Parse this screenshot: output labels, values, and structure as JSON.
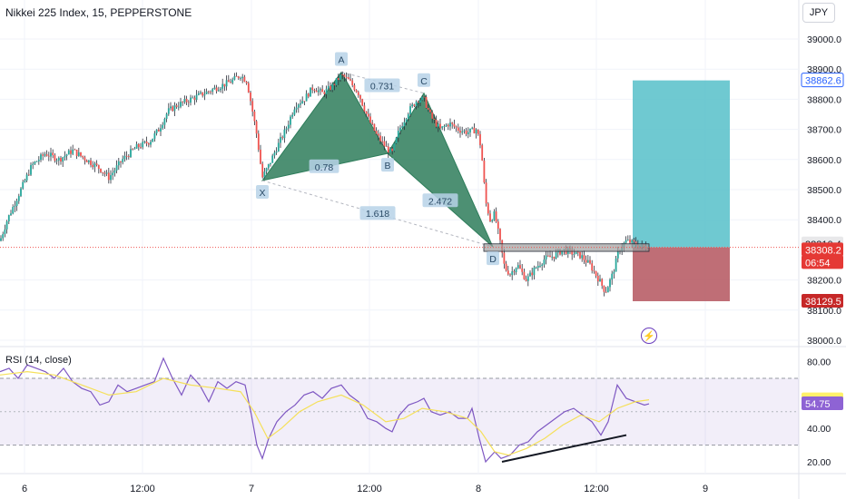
{
  "header": {
    "title": "Nikkei 225 Index, 15, PEPPERSTONE",
    "currency_button": "JPY"
  },
  "chart_data": [
    {
      "type": "candlestick",
      "title": "Nikkei 225 Index, 15, PEPPERSTONE",
      "ylim": [
        38000,
        39100
      ],
      "y_ticks": [
        "39000.0",
        "38900.0",
        "38800.0",
        "38700.0",
        "38600.0",
        "38500.0",
        "38400.0",
        "38200.0",
        "38100.0",
        "38000.0"
      ],
      "x_ticks": [
        "6",
        "12:00",
        "7",
        "12:00",
        "8",
        "12:00",
        "9"
      ],
      "grid": true,
      "close_path": [
        [
          0,
          38330
        ],
        [
          8,
          38400
        ],
        [
          20,
          38480
        ],
        [
          35,
          38580
        ],
        [
          50,
          38620
        ],
        [
          65,
          38600
        ],
        [
          80,
          38630
        ],
        [
          95,
          38600
        ],
        [
          110,
          38570
        ],
        [
          120,
          38540
        ],
        [
          135,
          38600
        ],
        [
          150,
          38640
        ],
        [
          165,
          38660
        ],
        [
          175,
          38700
        ],
        [
          185,
          38760
        ],
        [
          195,
          38780
        ],
        [
          210,
          38800
        ],
        [
          225,
          38820
        ],
        [
          240,
          38840
        ],
        [
          255,
          38860
        ],
        [
          265,
          38880
        ],
        [
          272,
          38860
        ],
        [
          277,
          38780
        ],
        [
          283,
          38680
        ],
        [
          289,
          38540
        ],
        [
          296,
          38580
        ],
        [
          305,
          38640
        ],
        [
          315,
          38700
        ],
        [
          325,
          38780
        ],
        [
          335,
          38800
        ],
        [
          345,
          38840
        ],
        [
          355,
          38820
        ],
        [
          365,
          38840
        ],
        [
          376,
          38880
        ],
        [
          385,
          38860
        ],
        [
          395,
          38820
        ],
        [
          405,
          38740
        ],
        [
          415,
          38680
        ],
        [
          425,
          38640
        ],
        [
          432,
          38620
        ],
        [
          440,
          38700
        ],
        [
          450,
          38760
        ],
        [
          460,
          38800
        ],
        [
          467,
          38800
        ],
        [
          475,
          38740
        ],
        [
          485,
          38700
        ],
        [
          495,
          38720
        ],
        [
          505,
          38700
        ],
        [
          515,
          38690
        ],
        [
          525,
          38700
        ],
        [
          530,
          38640
        ],
        [
          535,
          38460
        ],
        [
          540,
          38400
        ],
        [
          545,
          38420
        ],
        [
          550,
          38340
        ],
        [
          556,
          38240
        ],
        [
          562,
          38220
        ],
        [
          570,
          38250
        ],
        [
          580,
          38200
        ],
        [
          590,
          38240
        ],
        [
          600,
          38270
        ],
        [
          610,
          38280
        ],
        [
          620,
          38300
        ],
        [
          630,
          38290
        ],
        [
          640,
          38280
        ],
        [
          650,
          38250
        ],
        [
          660,
          38200
        ],
        [
          667,
          38160
        ],
        [
          675,
          38220
        ],
        [
          682,
          38300
        ],
        [
          690,
          38330
        ],
        [
          700,
          38320
        ],
        [
          710,
          38310
        ],
        [
          715,
          38308
        ]
      ],
      "harmonic_pattern": {
        "points": [
          {
            "label": "X",
            "x": 289,
            "y": 38530
          },
          {
            "label": "A",
            "x": 376,
            "y": 38890
          },
          {
            "label": "B",
            "x": 427,
            "y": 38620
          },
          {
            "label": "C",
            "x": 467,
            "y": 38820
          },
          {
            "label": "D",
            "x": 543,
            "y": 38310
          }
        ],
        "ratios": [
          {
            "text": "0.731",
            "x": 421,
            "y": 38845
          },
          {
            "text": "0.78",
            "x": 357,
            "y": 38576
          },
          {
            "text": "2.472",
            "x": 485,
            "y": 38463
          },
          {
            "text": "1.618",
            "x": 416,
            "y": 38421
          }
        ]
      },
      "position": {
        "entry": 38308.2,
        "target": 38862.6,
        "stop": 38129.5,
        "x_start": 697,
        "x_end": 804,
        "profit_color": "#5fc3cc",
        "loss_color": "#b85e67"
      },
      "support_zone": {
        "low": 38295,
        "high": 38320,
        "x_start": 533,
        "x_end": 715
      },
      "price_labels": [
        {
          "text": "38862.6",
          "price": 38862.6,
          "style": "outline-blue"
        },
        {
          "text": "38310.4",
          "price": 38320,
          "style": "light"
        },
        {
          "text": "38308.2",
          "price": 38300,
          "style": "red"
        },
        {
          "text": "06:54",
          "price": 38258,
          "style": "red"
        },
        {
          "text": "38129.5",
          "price": 38129.5,
          "style": "dark-red"
        }
      ],
      "current_price": 38308.2,
      "colors": {
        "up": "#26a69a",
        "down": "#ef5350",
        "candle": "#2a2e39",
        "pattern_fill": "#2e7d5b"
      }
    },
    {
      "type": "line",
      "title": "RSI (14, close)",
      "ylim": [
        14,
        88
      ],
      "y_ticks": [
        "80.00",
        "40.00",
        "20.00"
      ],
      "bands": {
        "upper": 70,
        "lower": 30
      },
      "series": [
        {
          "name": "RSI",
          "color": "#7e57c2",
          "values": [
            [
              0,
              74
            ],
            [
              10,
              76
            ],
            [
              20,
              70
            ],
            [
              30,
              78
            ],
            [
              40,
              76
            ],
            [
              50,
              74
            ],
            [
              60,
              70
            ],
            [
              70,
              76
            ],
            [
              80,
              68
            ],
            [
              90,
              64
            ],
            [
              100,
              62
            ],
            [
              110,
              54
            ],
            [
              120,
              56
            ],
            [
              130,
              66
            ],
            [
              140,
              62
            ],
            [
              150,
              64
            ],
            [
              160,
              66
            ],
            [
              170,
              68
            ],
            [
              180,
              82
            ],
            [
              190,
              70
            ],
            [
              200,
              60
            ],
            [
              210,
              72
            ],
            [
              220,
              66
            ],
            [
              230,
              56
            ],
            [
              240,
              68
            ],
            [
              250,
              64
            ],
            [
              260,
              68
            ],
            [
              270,
              66
            ],
            [
              277,
              48
            ],
            [
              283,
              30
            ],
            [
              289,
              22
            ],
            [
              296,
              34
            ],
            [
              305,
              44
            ],
            [
              315,
              50
            ],
            [
              325,
              54
            ],
            [
              335,
              60
            ],
            [
              345,
              62
            ],
            [
              355,
              58
            ],
            [
              365,
              64
            ],
            [
              376,
              66
            ],
            [
              385,
              60
            ],
            [
              395,
              56
            ],
            [
              405,
              46
            ],
            [
              415,
              44
            ],
            [
              425,
              40
            ],
            [
              432,
              38
            ],
            [
              440,
              48
            ],
            [
              450,
              54
            ],
            [
              460,
              56
            ],
            [
              467,
              58
            ],
            [
              475,
              50
            ],
            [
              485,
              48
            ],
            [
              495,
              50
            ],
            [
              505,
              46
            ],
            [
              515,
              46
            ],
            [
              520,
              52
            ],
            [
              528,
              34
            ],
            [
              535,
              20
            ],
            [
              545,
              26
            ],
            [
              552,
              22
            ],
            [
              562,
              24
            ],
            [
              572,
              30
            ],
            [
              582,
              32
            ],
            [
              592,
              38
            ],
            [
              602,
              42
            ],
            [
              612,
              46
            ],
            [
              622,
              50
            ],
            [
              632,
              52
            ],
            [
              642,
              48
            ],
            [
              652,
              44
            ],
            [
              662,
              36
            ],
            [
              670,
              44
            ],
            [
              680,
              66
            ],
            [
              690,
              58
            ],
            [
              700,
              56
            ],
            [
              710,
              54
            ],
            [
              715,
              54.75
            ]
          ]
        },
        {
          "name": "MA",
          "color": "#f5e05a",
          "values": [
            [
              0,
              72
            ],
            [
              30,
              74
            ],
            [
              60,
              72
            ],
            [
              90,
              66
            ],
            [
              120,
              60
            ],
            [
              150,
              62
            ],
            [
              180,
              70
            ],
            [
              210,
              66
            ],
            [
              240,
              64
            ],
            [
              265,
              62
            ],
            [
              280,
              50
            ],
            [
              295,
              34
            ],
            [
              310,
              40
            ],
            [
              330,
              50
            ],
            [
              350,
              56
            ],
            [
              376,
              60
            ],
            [
              400,
              54
            ],
            [
              425,
              44
            ],
            [
              445,
              46
            ],
            [
              465,
              52
            ],
            [
              490,
              50
            ],
            [
              515,
              46
            ],
            [
              530,
              38
            ],
            [
              545,
              26
            ],
            [
              560,
              24
            ],
            [
              580,
              28
            ],
            [
              600,
              34
            ],
            [
              620,
              42
            ],
            [
              640,
              48
            ],
            [
              660,
              44
            ],
            [
              680,
              52
            ],
            [
              700,
              56
            ],
            [
              715,
              57.16
            ]
          ]
        }
      ],
      "divergence_line": {
        "start": [
          553,
          20
        ],
        "end": [
          690,
          36
        ]
      },
      "price_labels": [
        {
          "text": "57.16",
          "value": 57.16,
          "style": "yellow"
        },
        {
          "text": "54.75",
          "value": 54.75,
          "style": "purple"
        }
      ]
    }
  ],
  "rsi_label": "RSI (14, close)",
  "alert_icon": "lightning-icon"
}
